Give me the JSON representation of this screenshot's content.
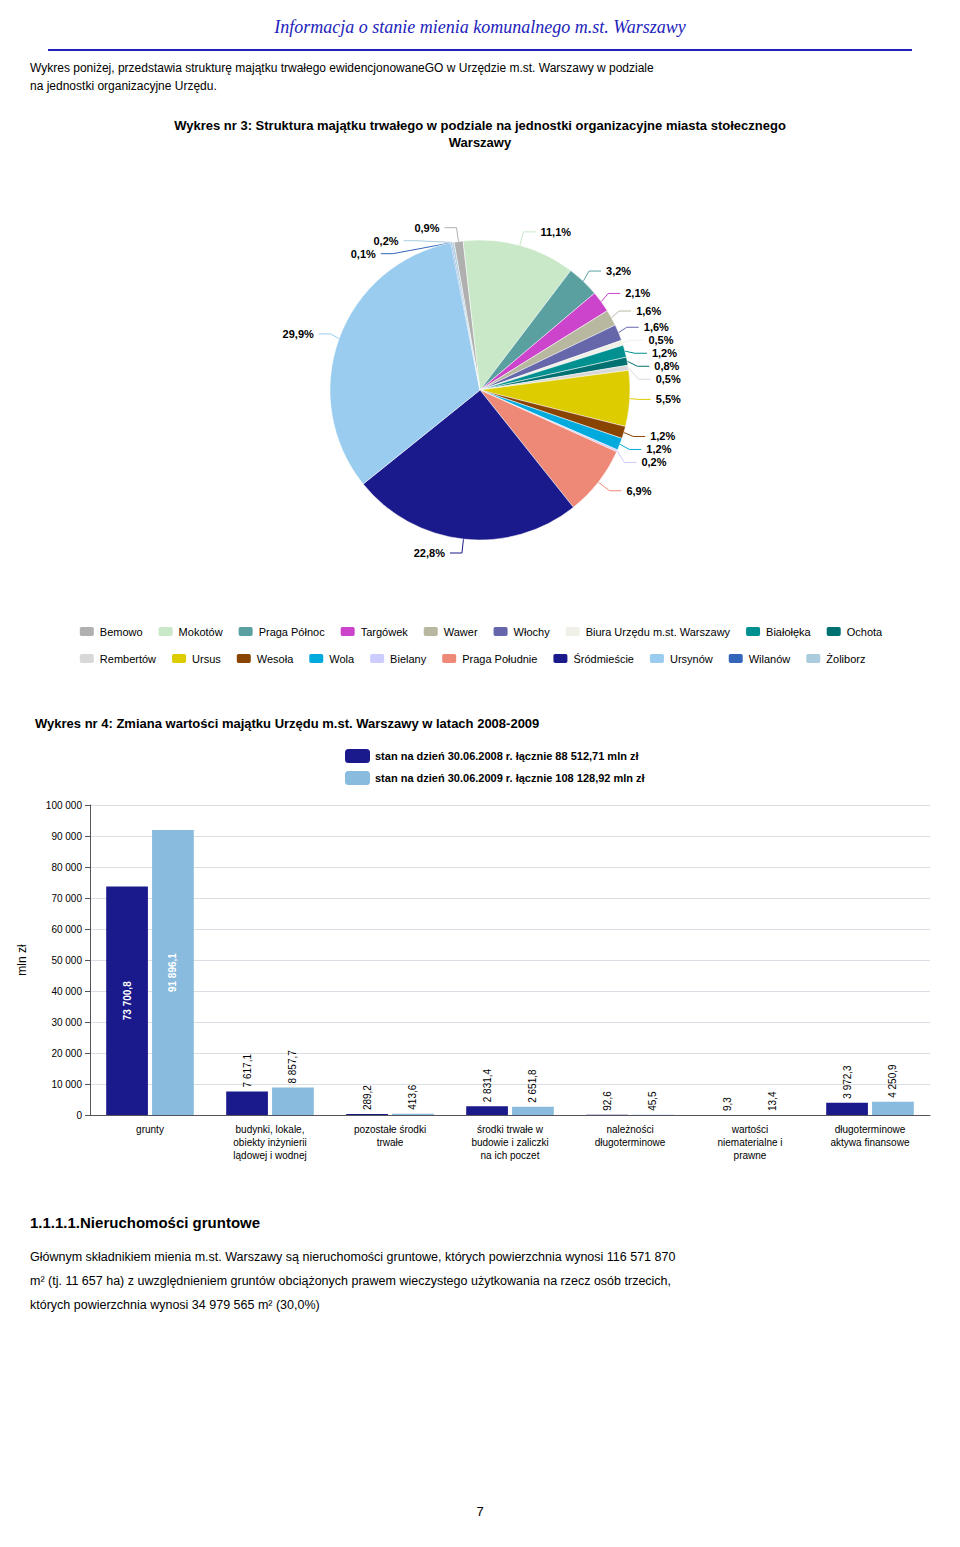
{
  "chart_data": [
    {
      "type": "pie",
      "title": "Wykres nr 3: Struktura majątku trwałego w podziale na jednostki organizacyjne miasta stołecznego\nWarszawy",
      "annotations": [
        "Informacja o stanie mienia komunalnego m.st. Warszawy",
        "Wykres poniżej, przedstawia strukturę majątku trwałego ewidencjonowaneGO w Urzędzie m.st. Warszawy w podziale",
        "na jednostki organizacyjne Urzędu."
      ],
      "categories": [
        "Bemowo",
        "Mokotów",
        "Praga Północ",
        "Targówek",
        "Wawer",
        "Włochy",
        "Biura Urzędu m.st. Warszawy",
        "Białołęka",
        "Ochota",
        "Rembertów",
        "Ursus",
        "Wesoła",
        "Wola",
        "Bielany",
        "Praga Południe",
        "Śródmieście",
        "Ursynów",
        "Wilanów",
        "Żoliborz"
      ],
      "values": [
        0.9,
        11.1,
        3.2,
        2.1,
        1.6,
        1.6,
        0.5,
        1.2,
        0.8,
        0.5,
        5.5,
        1.2,
        1.2,
        0.2,
        6.9,
        22.8,
        29.9,
        0.1,
        0.2
      ],
      "value_labels": [
        "0,9%",
        "11,1%",
        "3,2%",
        "2,1%",
        "1,6%",
        "1,6%",
        "0,5%",
        "1,2%",
        "0,8%",
        "0,5%",
        "5,5%",
        "1,2%",
        "1,2%",
        "0,2%",
        "6,9%",
        "22,8%",
        "29,9%",
        "0,1%",
        "0,2%"
      ],
      "colors": [
        "#b0b0b0",
        "#c8e8c8",
        "#5ba0a0",
        "#cc44cc",
        "#b8b8a0",
        "#6666aa",
        "#f0f0e8",
        "#009090",
        "#007070",
        "#d8d8d8",
        "#ddcc00",
        "#884400",
        "#00aadd",
        "#ccccff",
        "#ee8877",
        "#1a1a8c",
        "#99ccee",
        "#3366bb",
        "#aaccdd"
      ],
      "data_labels": true,
      "legend": "bottom"
    },
    {
      "type": "bar",
      "title": "Wykres nr 4: Zmiana wartości majątku Urzędu m.st. Warszawy w latach 2008-2009",
      "categories": [
        "grunty",
        "budynki, lokale,\nobiekty inżynierii\nlądowej i wodnej",
        "pozostałe środki\ntrwałe",
        "środki trwałe w\nbudowie i zaliczki\nna ich poczet",
        "należności\ndługoterminowe",
        "wartości\nniematerialne i\nprawne",
        "długoterminowe\naktywa finansowe"
      ],
      "series": [
        {
          "name": "stan na dzień 30.06.2008 r. łącznie 88 512,71 mln zł",
          "color": "#1a1a8c",
          "values": [
            73700.8,
            7617.1,
            289.2,
            2831.4,
            92.6,
            9.3,
            3972.3
          ],
          "value_labels": [
            "73 700,8",
            "7 617,1",
            "289,2",
            "2 831,4",
            "92,6",
            "9,3",
            "3 972,3"
          ]
        },
        {
          "name": "stan na dzień 30.06.2009 r. łącznie 108 128,92 mln zł",
          "color": "#88bbdd",
          "values": [
            91896.1,
            8857.7,
            413.6,
            2651.8,
            45.5,
            13.4,
            4250.9
          ],
          "value_labels": [
            "91 896,1",
            "8 857,7",
            "413,6",
            "2 651,8",
            "45,5",
            "13,4",
            "4 250,9"
          ]
        }
      ],
      "ylabel": "mln zł",
      "ylim": [
        0,
        100000
      ],
      "yticks": [
        0,
        {
          "value": 10000,
          "label": "10 000"
        },
        {
          "value": 20000,
          "label": "20 000"
        },
        {
          "value": 30000,
          "label": "30 000"
        },
        {
          "value": 40000,
          "label": "40 000"
        },
        {
          "value": 50000,
          "label": "50 000"
        },
        {
          "value": 60000,
          "label": "60 000"
        },
        {
          "value": 70000,
          "label": "70 000"
        },
        {
          "value": 80000,
          "label": "80 000"
        },
        {
          "value": 90000,
          "label": "90 000"
        },
        {
          "value": 100000,
          "label": "100 000"
        }
      ],
      "grid": true,
      "data_labels": true,
      "legend": "top",
      "annotations": [
        "1.1.1.1.Nieruchomości gruntowe",
        "Głównym składnikiem mienia m.st. Warszawy są nieruchomości gruntowe, których powierzchnia wynosi 116 571 870",
        "m² (tj. 11 657 ha) z uwzględnieniem gruntów obciążonych prawem wieczystego użytkowania na rzecz osób trzecich,",
        "których powierzchnia wynosi 34 979 565 m² (30,0%)",
        "7"
      ]
    }
  ]
}
